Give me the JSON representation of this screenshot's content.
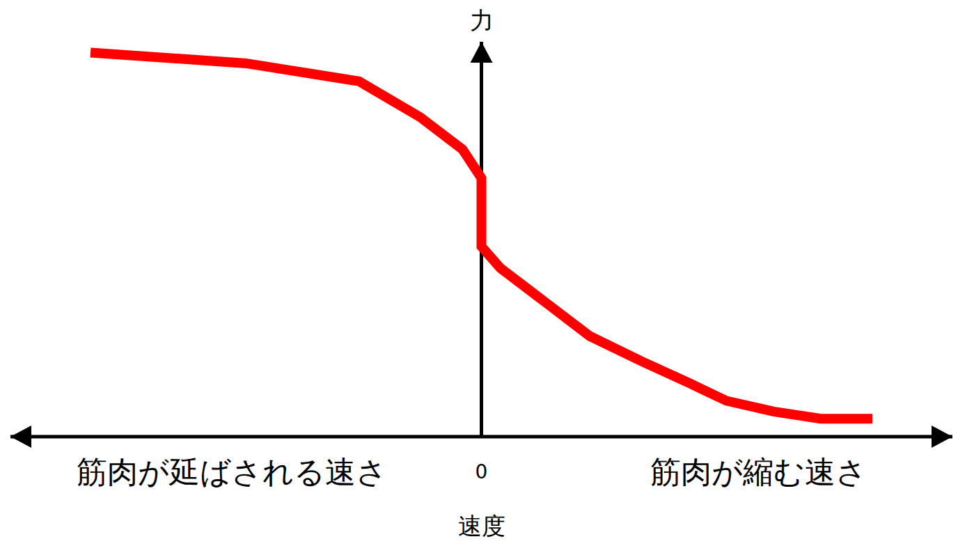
{
  "chart_data": {
    "type": "line",
    "x_label": "速度",
    "y_label": "力",
    "annotations": [
      "筋肉が延ばされる速さ",
      "筋肉が縮む速さ"
    ],
    "x": [
      -0.83,
      -0.5,
      -0.26,
      -0.13,
      -0.04,
      0,
      0,
      0.04,
      0.14,
      0.23,
      0.34,
      0.44,
      0.52,
      0.62,
      0.72,
      0.83
    ],
    "values": [
      1.07,
      1.04,
      0.99,
      0.89,
      0.8,
      0.72,
      0.53,
      0.47,
      0.37,
      0.28,
      0.21,
      0.15,
      0.1,
      0.07,
      0.05,
      0.05
    ],
    "color": "#ff0000",
    "xlim": [
      -1,
      1
    ],
    "ylim": [
      0,
      1.1
    ],
    "xticks": [
      0
    ],
    "tick_labels": "x",
    "grid": false
  }
}
